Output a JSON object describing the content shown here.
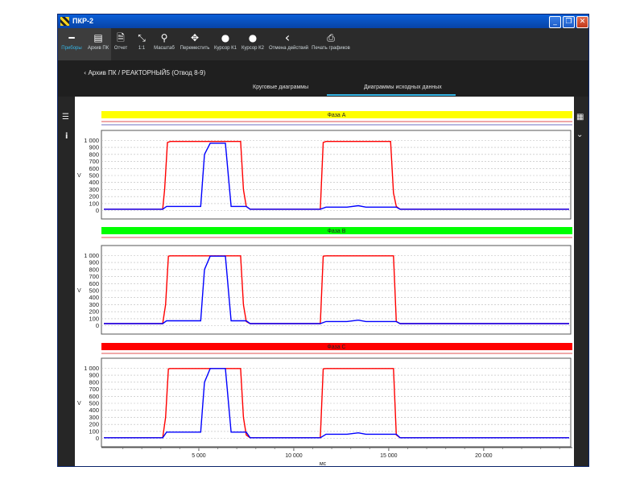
{
  "window": {
    "title": "ПКР-2"
  },
  "toolbar": {
    "items": [
      {
        "label": "Приборы",
        "icon": "minus-icon",
        "glyph": "━"
      },
      {
        "label": "Архив ПК",
        "icon": "archive-icon",
        "glyph": "▤"
      },
      {
        "label": "Отчет",
        "icon": "report-icon",
        "glyph": "🗎"
      },
      {
        "label": "1:1",
        "icon": "fit-icon",
        "glyph": "⤡"
      },
      {
        "label": "Масштаб",
        "icon": "zoom-icon",
        "glyph": "⚲"
      },
      {
        "label": "Переместить",
        "icon": "move-icon",
        "glyph": "✥"
      },
      {
        "label": "Курсор К1",
        "icon": "pin-icon",
        "glyph": "⚲"
      },
      {
        "label": "Курсор К2",
        "icon": "pin-icon",
        "glyph": "⚲"
      },
      {
        "label": "Отмена действий",
        "icon": "back-icon",
        "glyph": "‹"
      },
      {
        "label": "Печать графиков",
        "icon": "print-icon",
        "glyph": "⎙"
      }
    ]
  },
  "breadcrumb": {
    "text": "Архив ПК / РЕАКТОРНЫЙ5 (Отвод 8-9)"
  },
  "tabs": [
    {
      "label": "Круговые диаграммы"
    },
    {
      "label": "Диаграммы исходных данных",
      "active": true
    }
  ],
  "colors": {
    "phaseA": "#ffff00",
    "phaseB": "#00ff00",
    "phaseC": "#ff0000",
    "series1": "#ff0000",
    "series2": "#0000ff"
  },
  "x_axis": {
    "ticks": [
      "5 000",
      "10 000",
      "15 000",
      "20 000"
    ],
    "unit": "мс"
  },
  "chart_data": [
    {
      "type": "line",
      "title": "Фаза A",
      "ylabel": "V",
      "ylim": [
        -50,
        1050
      ],
      "xlim": [
        0,
        24500
      ],
      "yticks": [
        "0",
        "100",
        "200",
        "300",
        "400",
        "500",
        "600",
        "700",
        "800",
        "900",
        "1 000"
      ],
      "series": [
        {
          "color": "#ff0000",
          "x": [
            0,
            3100,
            3200,
            3350,
            3500,
            7200,
            7350,
            7500,
            7700,
            7900,
            11400,
            11550,
            11700,
            15100,
            15250,
            15400,
            15600,
            15800,
            24500
          ],
          "y": [
            20,
            20,
            300,
            970,
            985,
            985,
            300,
            60,
            20,
            20,
            20,
            970,
            985,
            985,
            250,
            60,
            20,
            20,
            20
          ]
        },
        {
          "color": "#0000ff",
          "x": [
            0,
            3100,
            3300,
            5100,
            5300,
            5600,
            6400,
            6700,
            7500,
            7700,
            11400,
            11700,
            12800,
            13400,
            13800,
            15400,
            15600,
            24500
          ],
          "y": [
            20,
            20,
            60,
            60,
            800,
            960,
            960,
            60,
            60,
            20,
            20,
            50,
            50,
            70,
            50,
            50,
            20,
            20
          ]
        }
      ]
    },
    {
      "type": "line",
      "title": "Фаза B",
      "ylabel": "V",
      "ylim": [
        -50,
        1050
      ],
      "xlim": [
        0,
        24500
      ],
      "yticks": [
        "0",
        "100",
        "200",
        "300",
        "400",
        "500",
        "600",
        "700",
        "800",
        "900",
        "1 000"
      ],
      "series": [
        {
          "color": "#ff0000",
          "x": [
            0,
            3100,
            3250,
            3400,
            3500,
            7200,
            7350,
            7500,
            7700,
            11400,
            11550,
            11700,
            15100,
            15250,
            15400,
            15600,
            24500
          ],
          "y": [
            30,
            30,
            300,
            990,
            995,
            995,
            300,
            60,
            30,
            30,
            990,
            995,
            995,
            995,
            60,
            30,
            30
          ]
        },
        {
          "color": "#0000ff",
          "x": [
            0,
            3100,
            3300,
            5100,
            5300,
            5600,
            6400,
            6700,
            7500,
            7700,
            11400,
            11700,
            12800,
            13400,
            13800,
            15400,
            15600,
            24500
          ],
          "y": [
            30,
            30,
            70,
            70,
            800,
            990,
            990,
            70,
            70,
            30,
            30,
            60,
            60,
            80,
            60,
            60,
            30,
            30
          ]
        }
      ]
    },
    {
      "type": "line",
      "title": "Фаза C",
      "ylabel": "V",
      "ylim": [
        -50,
        1050
      ],
      "xlim": [
        0,
        24500
      ],
      "yticks": [
        "0",
        "100",
        "200",
        "300",
        "400",
        "500",
        "600",
        "700",
        "800",
        "900",
        "1 000"
      ],
      "series": [
        {
          "color": "#ff0000",
          "x": [
            0,
            3100,
            3250,
            3400,
            3500,
            7200,
            7350,
            7500,
            7700,
            11400,
            11550,
            11700,
            15100,
            15250,
            15400,
            15600,
            24500
          ],
          "y": [
            10,
            10,
            300,
            990,
            995,
            995,
            300,
            50,
            10,
            10,
            990,
            995,
            995,
            995,
            50,
            10,
            10
          ]
        },
        {
          "color": "#0000ff",
          "x": [
            0,
            3100,
            3300,
            5100,
            5300,
            5600,
            6400,
            6700,
            7500,
            7700,
            11400,
            11700,
            12800,
            13400,
            13800,
            15400,
            15600,
            24500
          ],
          "y": [
            10,
            10,
            90,
            90,
            800,
            995,
            995,
            90,
            90,
            10,
            10,
            60,
            60,
            80,
            60,
            60,
            10,
            10
          ]
        }
      ]
    }
  ]
}
